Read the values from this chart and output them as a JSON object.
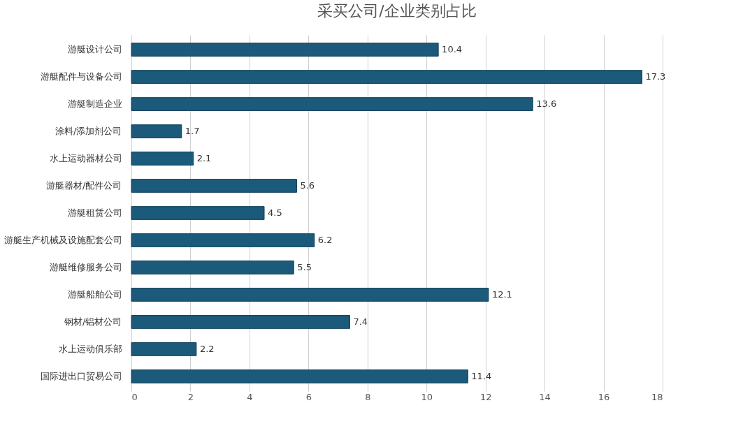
{
  "chart_data": {
    "type": "bar",
    "orientation": "horizontal",
    "title": "采买公司/企业类别占比",
    "categories": [
      "游艇设计公司",
      "游艇配件与设备公司",
      "游艇制造企业",
      "涂料/添加剂公司",
      "水上运动器材公司",
      "游艇器材/配件公司",
      "游艇租赁公司",
      "游艇生产机械及设施配套公司",
      "游艇维修服务公司",
      "游艇船舶公司",
      "钢材/铝材公司",
      "水上运动俱乐部",
      "国际进出口贸易公司"
    ],
    "values": [
      10.4,
      17.3,
      13.6,
      1.7,
      2.1,
      5.6,
      4.5,
      6.2,
      5.5,
      12.1,
      7.4,
      2.2,
      11.4
    ],
    "color": "#1b5a7a",
    "xlim": [
      0,
      18
    ],
    "xticks": [
      0,
      2,
      4,
      6,
      8,
      10,
      12,
      14,
      16,
      18
    ],
    "grid": "x",
    "data_labels": true
  }
}
